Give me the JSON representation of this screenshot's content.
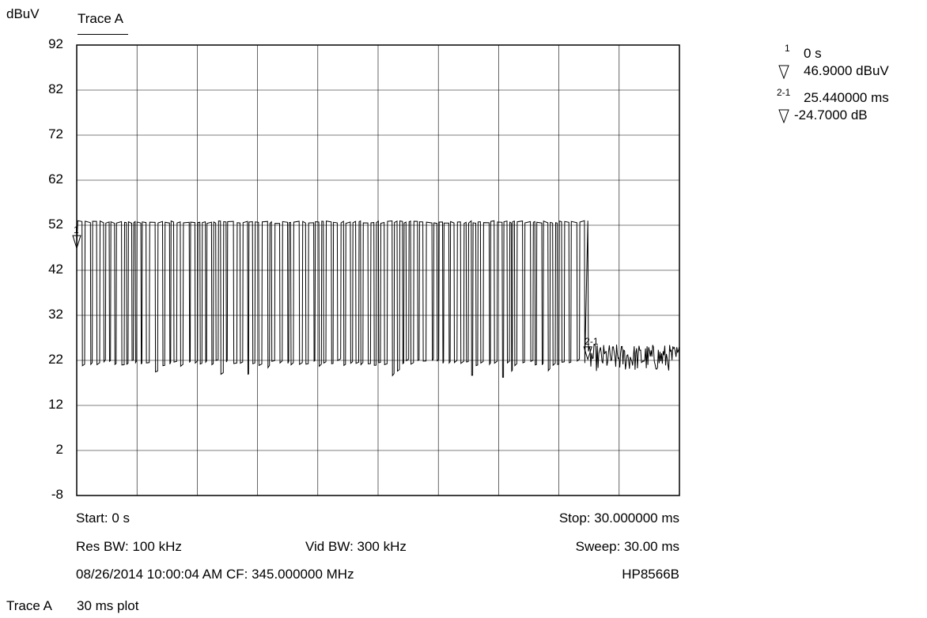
{
  "chart_data": {
    "type": "line",
    "ylabel": "dBuV",
    "title": "Trace A",
    "ylim": [
      -8,
      92
    ],
    "yticks": [
      "92",
      "82",
      "72",
      "62",
      "52",
      "42",
      "32",
      "22",
      "12",
      "2",
      "-8"
    ],
    "xlim_ms": [
      0,
      30
    ],
    "grid": true,
    "series": [
      {
        "name": "Trace A",
        "pulse_high_dbuv": 53,
        "pulse_low_dbuv": 22,
        "burst_end_ms": 25.44,
        "noise_floor_dbuv": 22
      }
    ],
    "markers": [
      {
        "label": "1",
        "time_ms": 0,
        "level_dbuv": 46.9
      },
      {
        "label": "2-1",
        "time_ms": 25.44,
        "level_dbuv": 22.2
      }
    ]
  },
  "marker_panel": {
    "m1_num": "1",
    "m1_time": "0 s",
    "m1_level": "46.9000 dBuV",
    "m2_num": "2-1",
    "m2_time": "25.440000 ms",
    "m2_level": "-24.7000 dB"
  },
  "footer": {
    "start": "Start: 0 s",
    "stop": "Stop: 30.000000 ms",
    "res_bw": "Res BW: 100 kHz",
    "vid_bw": "Vid BW: 300 kHz",
    "sweep": "Sweep: 30.00 ms",
    "datetime_cf": "08/26/2014 10:00:04 AM CF: 345.000000 MHz",
    "instrument": "HP8566B"
  },
  "caption": {
    "trace": "Trace A",
    "description": "30 ms plot"
  }
}
